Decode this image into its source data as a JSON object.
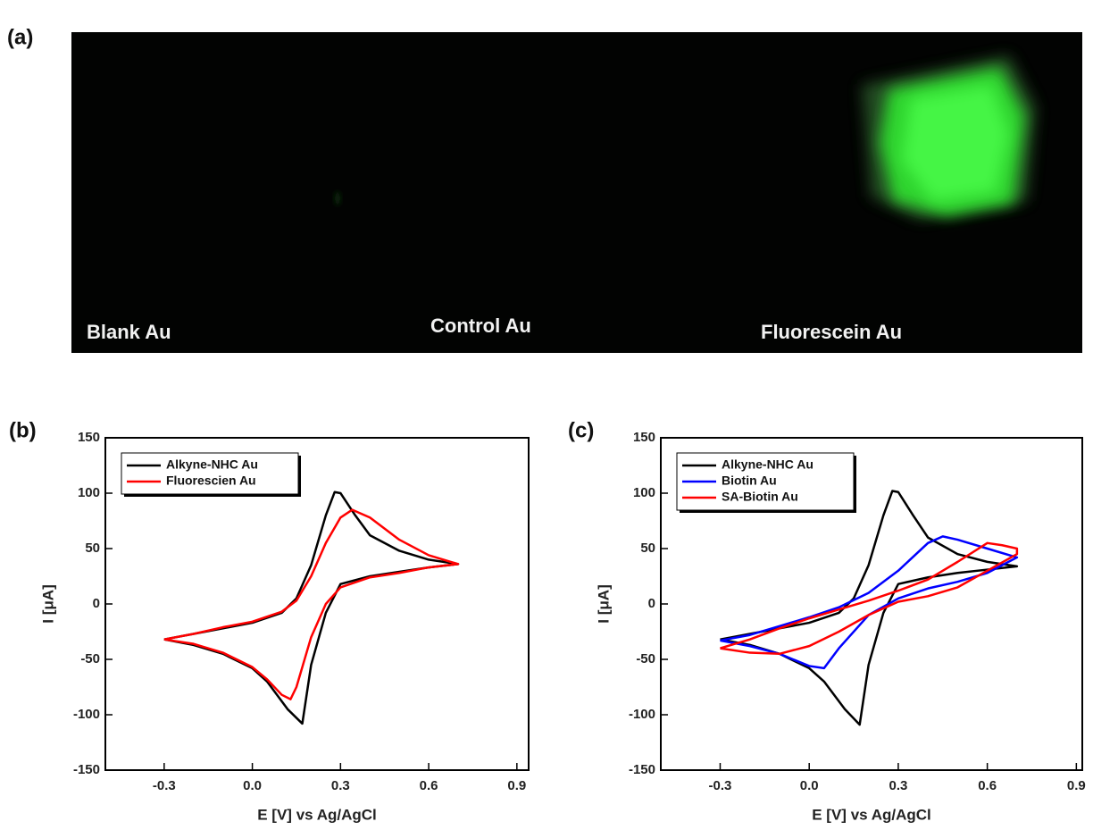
{
  "panel_a": {
    "label": "(a)",
    "image_labels": [
      "Blank Au",
      "Control Au",
      "Fluorescein Au"
    ]
  },
  "chart_data": [
    {
      "type": "line",
      "panel_label": "(b)",
      "xlabel": "E [V] vs Ag/AgCl",
      "ylabel": "I [μA]",
      "xlim": [
        -0.5,
        0.94
      ],
      "ylim": [
        -150,
        150
      ],
      "xticks": [
        -0.3,
        {
          "value": 0,
          "label": "0.0"
        },
        0.3,
        0.6,
        0.9
      ],
      "yticks": [
        -150,
        -100,
        -50,
        0,
        50,
        100,
        150
      ],
      "legend": "upper left",
      "series": [
        {
          "name": "Alkyne-NHC Au",
          "color": "#000000",
          "x": [
            -0.3,
            -0.2,
            -0.1,
            0.0,
            0.1,
            0.15,
            0.2,
            0.25,
            0.28,
            0.3,
            0.35,
            0.4,
            0.5,
            0.6,
            0.7,
            0.6,
            0.5,
            0.4,
            0.3,
            0.25,
            0.2,
            0.17,
            0.12,
            0.05,
            0.0,
            -0.1,
            -0.2,
            -0.3
          ],
          "values": [
            -32,
            -27,
            -22,
            -17,
            -8,
            5,
            35,
            80,
            101,
            100,
            80,
            62,
            48,
            40,
            36,
            33,
            29,
            25,
            18,
            -8,
            -55,
            -108,
            -95,
            -70,
            -58,
            -45,
            -37,
            -32
          ]
        },
        {
          "name": "Fluorescien Au",
          "color": "#ff0000",
          "x": [
            -0.3,
            -0.2,
            -0.1,
            0.0,
            0.1,
            0.15,
            0.2,
            0.25,
            0.3,
            0.34,
            0.4,
            0.5,
            0.6,
            0.7,
            0.6,
            0.5,
            0.4,
            0.3,
            0.25,
            0.2,
            0.15,
            0.13,
            0.1,
            0.05,
            0.0,
            -0.1,
            -0.2,
            -0.3
          ],
          "values": [
            -32,
            -27,
            -21,
            -16,
            -7,
            3,
            25,
            55,
            78,
            85,
            78,
            58,
            44,
            36,
            33,
            28,
            24,
            15,
            0,
            -30,
            -75,
            -86,
            -82,
            -68,
            -57,
            -44,
            -36,
            -32
          ]
        }
      ]
    },
    {
      "type": "line",
      "panel_label": "(c)",
      "xlabel": "E [V] vs Ag/AgCl",
      "ylabel": "I [μA]",
      "xlim": [
        -0.5,
        0.92
      ],
      "ylim": [
        -150,
        150
      ],
      "xticks": [
        -0.3,
        {
          "value": 0,
          "label": "0.0"
        },
        0.3,
        0.6,
        0.9
      ],
      "yticks": [
        -150,
        -100,
        -50,
        0,
        50,
        100,
        150
      ],
      "legend": "upper left",
      "series": [
        {
          "name": "Alkyne-NHC Au",
          "color": "#000000",
          "x": [
            -0.3,
            -0.2,
            -0.1,
            0.0,
            0.1,
            0.15,
            0.2,
            0.25,
            0.28,
            0.3,
            0.35,
            0.4,
            0.5,
            0.6,
            0.7,
            0.6,
            0.5,
            0.4,
            0.3,
            0.25,
            0.2,
            0.17,
            0.12,
            0.05,
            0.0,
            -0.1,
            -0.2,
            -0.3
          ],
          "values": [
            -32,
            -27,
            -22,
            -17,
            -8,
            5,
            35,
            80,
            102,
            101,
            80,
            60,
            45,
            38,
            34,
            31,
            28,
            24,
            18,
            -8,
            -55,
            -109,
            -95,
            -70,
            -58,
            -45,
            -37,
            -32
          ]
        },
        {
          "name": "Biotin Au",
          "color": "#0000ff",
          "x": [
            -0.3,
            -0.2,
            -0.1,
            0.0,
            0.1,
            0.2,
            0.3,
            0.4,
            0.45,
            0.5,
            0.6,
            0.7,
            0.6,
            0.5,
            0.4,
            0.3,
            0.2,
            0.1,
            0.05,
            0.0,
            -0.1,
            -0.2,
            -0.3
          ],
          "values": [
            -33,
            -28,
            -20,
            -12,
            -3,
            10,
            30,
            55,
            61,
            58,
            50,
            42,
            28,
            20,
            14,
            5,
            -10,
            -40,
            -58,
            -56,
            -45,
            -38,
            -33
          ]
        },
        {
          "name": "SA-Biotin Au",
          "color": "#ff0000",
          "x": [
            -0.3,
            -0.2,
            -0.1,
            0.0,
            0.1,
            0.2,
            0.3,
            0.4,
            0.5,
            0.6,
            0.65,
            0.7,
            0.7,
            0.6,
            0.5,
            0.4,
            0.3,
            0.2,
            0.1,
            0.0,
            -0.1,
            -0.2,
            -0.3
          ],
          "values": [
            -40,
            -32,
            -22,
            -13,
            -5,
            3,
            12,
            22,
            38,
            55,
            53,
            50,
            45,
            30,
            15,
            7,
            2,
            -10,
            -25,
            -38,
            -45,
            -44,
            -40
          ]
        }
      ]
    }
  ]
}
